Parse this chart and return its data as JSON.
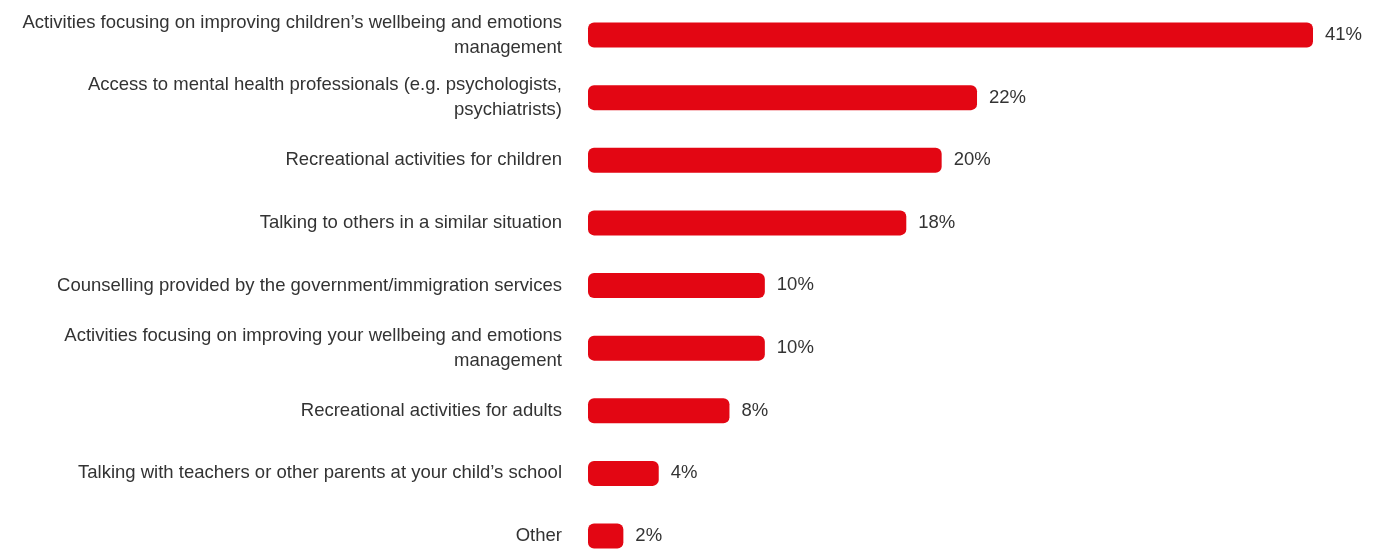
{
  "chart_data": {
    "type": "bar",
    "orientation": "horizontal",
    "categories": [
      "Activities focusing on improving children’s wellbeing and emotions management",
      "Access to mental health professionals (e.g. psychologists, psychiatrists)",
      "Recreational activities for children",
      "Talking to others in a similar situation",
      "Counselling provided by the government/immigration services",
      "Activities focusing on improving your wellbeing and emotions management",
      "Recreational activities for adults",
      "Talking with teachers or other parents at your child’s school",
      "Other"
    ],
    "values": [
      41,
      22,
      20,
      18,
      10,
      10,
      8,
      4,
      2
    ],
    "value_labels": [
      "41%",
      "22%",
      "20%",
      "18%",
      "10%",
      "10%",
      "8%",
      "4%",
      "2%"
    ],
    "color": "#e30613",
    "xlim": [
      0,
      41
    ],
    "tick_labels": "y"
  }
}
